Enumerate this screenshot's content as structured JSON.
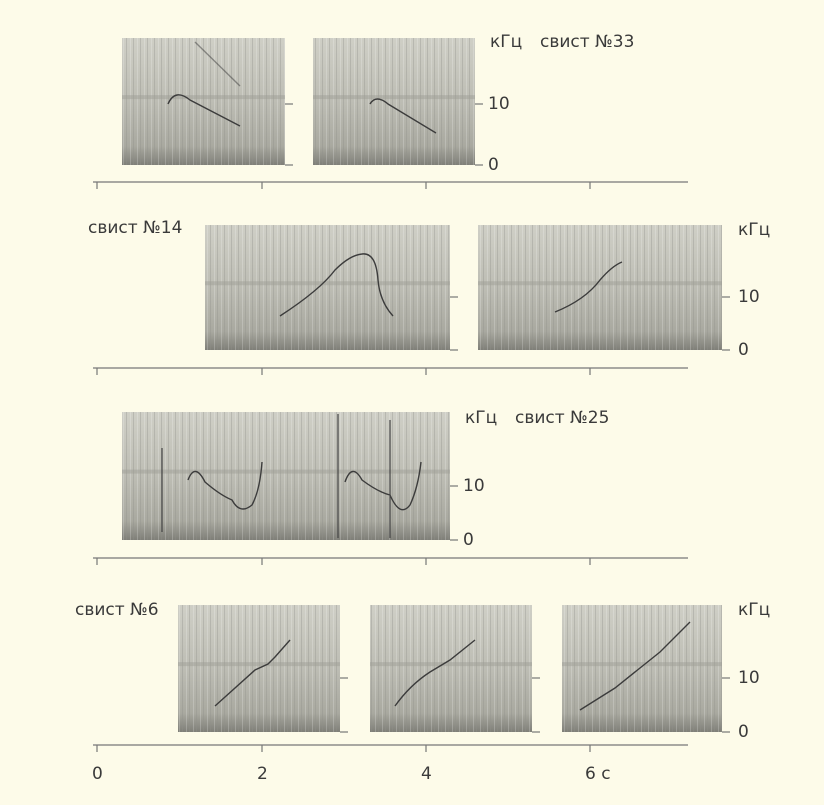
{
  "panels": [
    {
      "label": "свист №33",
      "unit": "кГц",
      "yticks": [
        "10",
        "0"
      ]
    },
    {
      "label": "свист №14",
      "unit": "кГц",
      "yticks": [
        "10",
        "0"
      ]
    },
    {
      "label": "свист №25",
      "unit": "кГц",
      "yticks": [
        "10",
        "0"
      ]
    },
    {
      "label": "свист №6",
      "unit": "кГц",
      "yticks": [
        "10",
        "0"
      ]
    }
  ],
  "time_axis": {
    "ticks": [
      "0",
      "2",
      "4",
      "6 с"
    ]
  }
}
